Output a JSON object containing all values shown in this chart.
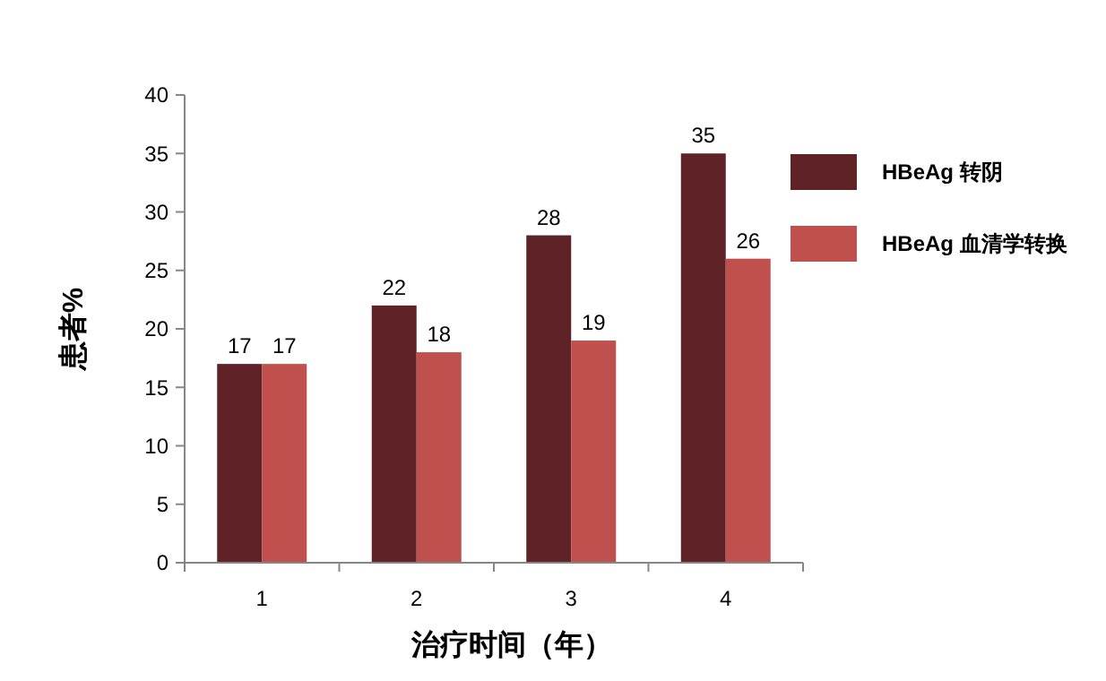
{
  "chart_data": {
    "type": "bar",
    "xlabel": "治疗时间（年）",
    "ylabel": "患者%",
    "categories": [
      "1",
      "2",
      "3",
      "4"
    ],
    "series": [
      {
        "name": "HBeAg 转阴",
        "color": "#5f2327",
        "values": [
          17,
          22,
          28,
          35
        ]
      },
      {
        "name": "HBeAg 血清学转换",
        "color": "#c0504d",
        "values": [
          17,
          18,
          19,
          26
        ]
      }
    ],
    "ylim": [
      0,
      40
    ],
    "yticks": [
      0,
      5,
      10,
      15,
      20,
      25,
      30,
      35,
      40
    ],
    "data_labels": true,
    "grid": false,
    "legend": "right"
  }
}
